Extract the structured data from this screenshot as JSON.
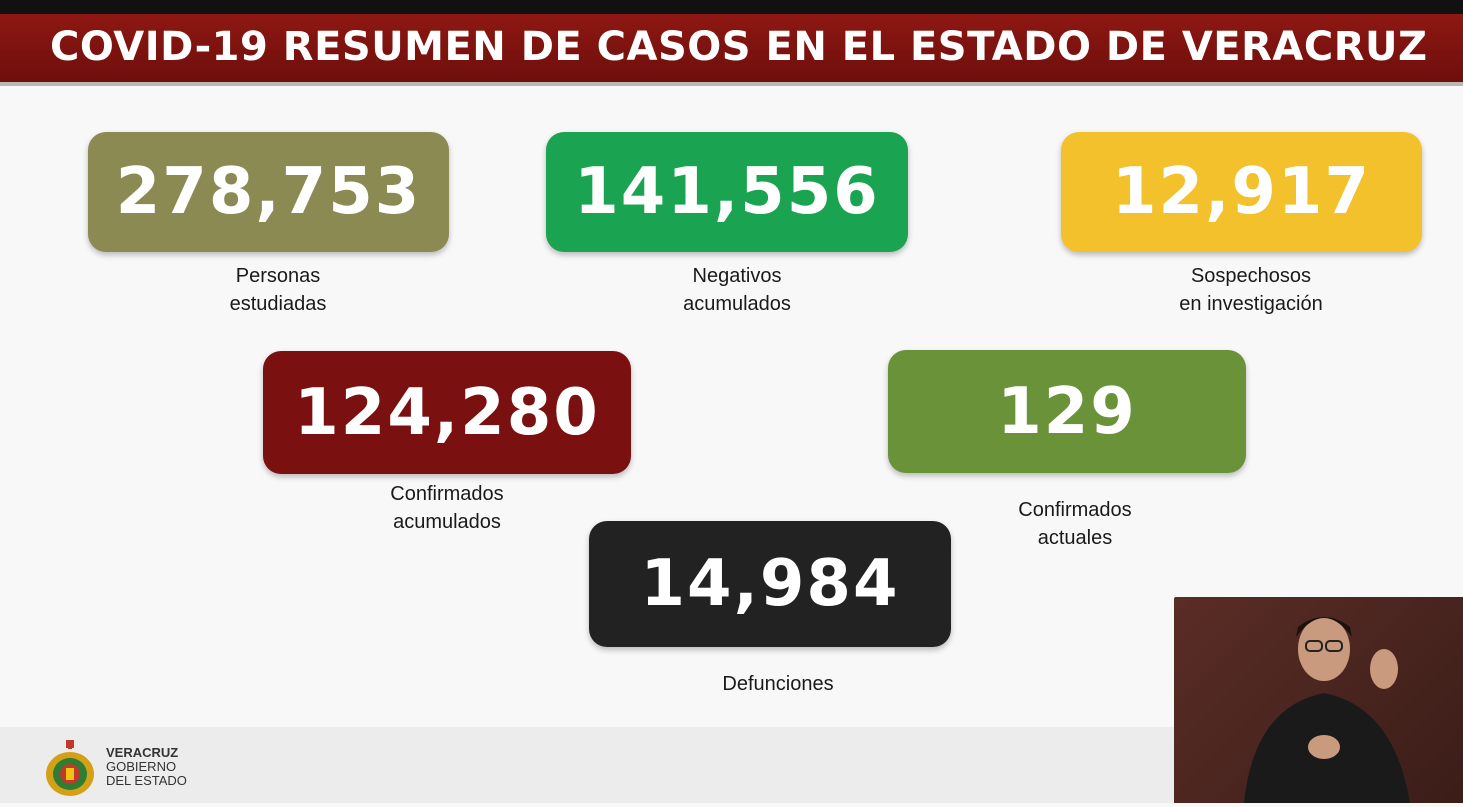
{
  "banner": {
    "title": "COVID-19 RESUMEN DE CASOS EN EL ESTADO DE VERACRUZ"
  },
  "cards": {
    "personas": {
      "value": "278,753",
      "label": "Personas\nestudiadas",
      "color": "#8b8a52"
    },
    "negativos": {
      "value": "141,556",
      "label": "Negativos\nacumulados",
      "color": "#1aa350"
    },
    "sospechosos": {
      "value": "12,917",
      "label": "Sospechosos\nen investigación",
      "color": "#f3c12b"
    },
    "confirmados_acum": {
      "value": "124,280",
      "label": "Confirmados\nacumulados",
      "color": "#7a1010"
    },
    "confirmados_act": {
      "value": "129",
      "label": "Confirmados\nactuales",
      "color": "#6a9238"
    },
    "defunciones": {
      "value": "14,984",
      "label": "Defunciones",
      "color": "#222222"
    }
  },
  "footer": {
    "logo_icon": "veracruz-coat-of-arms-icon",
    "line1": "VERACRUZ",
    "line2": "GOBIERNO",
    "line3": "DEL ESTADO"
  }
}
